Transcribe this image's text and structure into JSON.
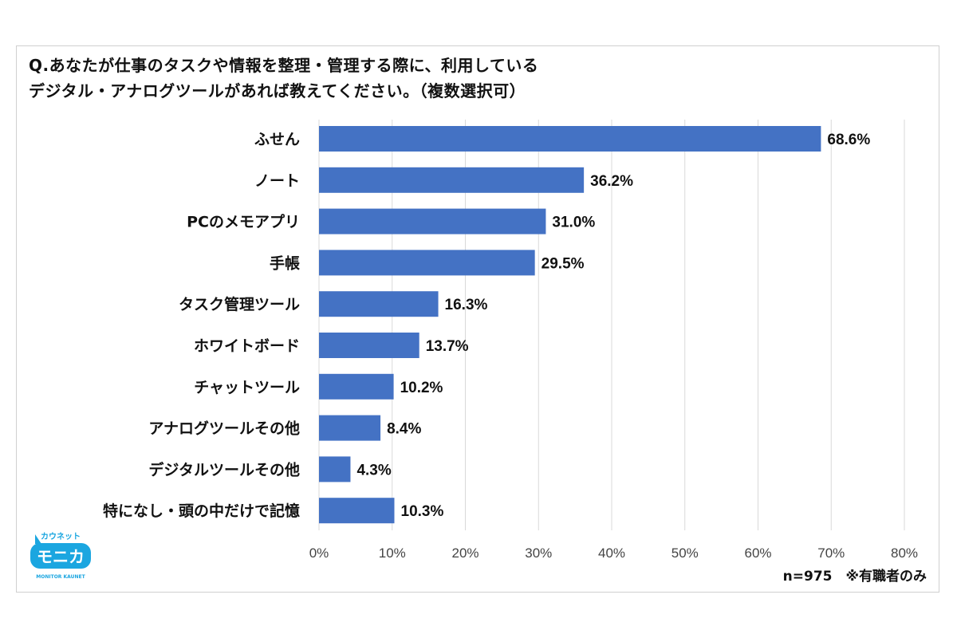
{
  "chart_data": {
    "type": "bar",
    "orientation": "horizontal",
    "title": "Q.あなたが仕事のタスクや情報を整理・管理する際に、利用しているデジタル・アナログツールがあれば教えてください。（複数選択可）",
    "title_lines": [
      "Q.あなたが仕事のタスクや情報を整理・管理する際に、利用している",
      "デジタル・アナログツールがあれば教えてください。（複数選択可）"
    ],
    "categories": [
      "ふせん",
      "ノート",
      "PCのメモアプリ",
      "手帳",
      "タスク管理ツール",
      "ホワイトボード",
      "チャットツール",
      "アナログツールその他",
      "デジタルツールその他",
      "特になし・頭の中だけで記憶"
    ],
    "values": [
      68.6,
      36.2,
      31.0,
      29.5,
      16.3,
      13.7,
      10.2,
      8.4,
      4.3,
      10.3
    ],
    "data_labels": [
      "68.6%",
      "36.2%",
      "31.0%",
      "29.5%",
      "16.3%",
      "13.7%",
      "10.2%",
      "8.4%",
      "4.3%",
      "10.3%"
    ],
    "xlim": [
      0,
      80
    ],
    "xticks": [
      "0%",
      "10%",
      "20%",
      "30%",
      "40%",
      "50%",
      "60%",
      "70%",
      "80%"
    ],
    "grid": true,
    "bar_color": "#4472C4",
    "note": "n=975　※有職者のみ"
  },
  "logo": {
    "top": "カウネット",
    "main": "モニカ",
    "sub": "MONITOR KAUNET",
    "color": "#1BA6E0"
  }
}
